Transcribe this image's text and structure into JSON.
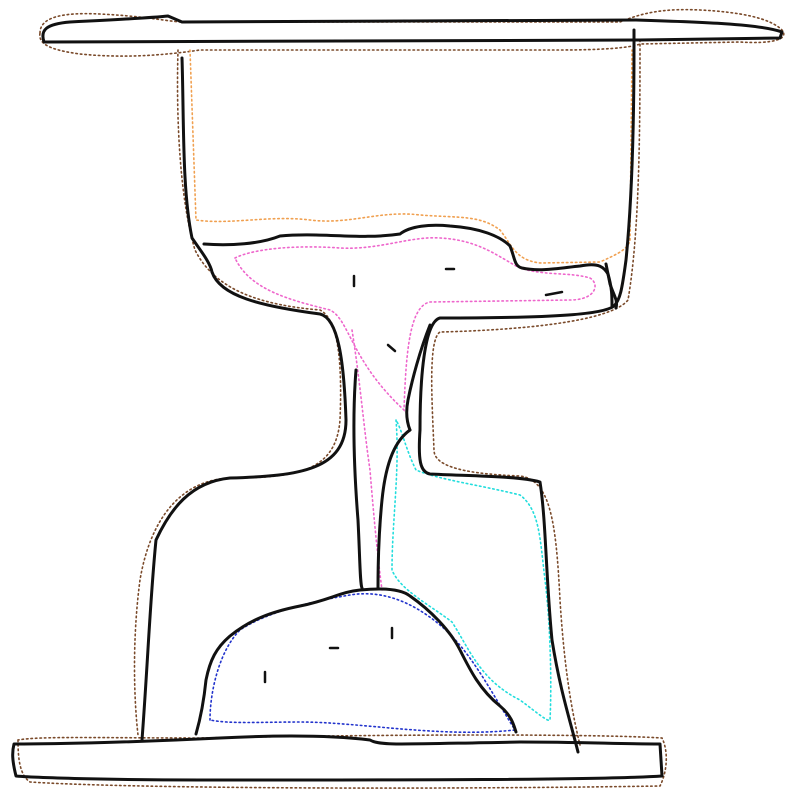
{
  "drawing": {
    "subject": "hourglass-sketch",
    "colors": {
      "ink": "#111111",
      "frame_halo": "#7a4a2a",
      "upper_chamber_halo": "#f0a050",
      "upper_sand_halo": "#ee66cc",
      "falling_stream_halo": "#ee66cc",
      "glass_reflection_halo": "#22dddd",
      "lower_sand_halo": "#2233cc"
    }
  }
}
